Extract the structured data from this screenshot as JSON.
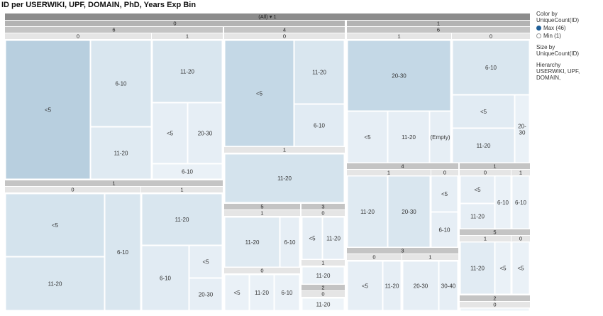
{
  "title": "ID per USERWIKI, UPF, DOMAIN, PhD, Years Exp Bin",
  "legend": {
    "color_by_label": "Color by",
    "color_by_value": "UniqueCount(ID)",
    "max_label": "Max (46)",
    "min_label": "Min (1)",
    "max_color": "#1f5f98",
    "min_color": "#ffffff",
    "size_by_label": "Size by",
    "size_by_value": "UniqueCount(ID)",
    "hierarchy_label": "Hierarchy",
    "hierarchy_value": "USERWIKI, UPF, DOMAIN,"
  },
  "chart_data": {
    "type": "treemap",
    "root_label": "(All)",
    "root_marker": "▾",
    "root_count": "1",
    "hierarchy": [
      "USERWIKI",
      "UPF",
      "DOMAIN",
      "PhD",
      "Years Exp Bin"
    ],
    "leaves": [
      {
        "path": [
          "0",
          "6",
          "0"
        ],
        "label": "<5"
      },
      {
        "path": [
          "0",
          "6",
          "0"
        ],
        "label": "6-10"
      },
      {
        "path": [
          "0",
          "6",
          "0"
        ],
        "label": "11-20"
      },
      {
        "path": [
          "0",
          "6",
          "1"
        ],
        "label": "11-20"
      },
      {
        "path": [
          "0",
          "6",
          "1"
        ],
        "label": "<5"
      },
      {
        "path": [
          "0",
          "6",
          "1"
        ],
        "label": "20-30"
      },
      {
        "path": [
          "0",
          "6",
          "1"
        ],
        "label": "6-10"
      },
      {
        "path": [
          "0",
          "1",
          "0"
        ],
        "label": "<5"
      },
      {
        "path": [
          "0",
          "1",
          "0"
        ],
        "label": "11-20"
      },
      {
        "path": [
          "0",
          "1",
          "0"
        ],
        "label": "6-10"
      },
      {
        "path": [
          "0",
          "1",
          "1"
        ],
        "label": "11-20"
      },
      {
        "path": [
          "0",
          "1",
          "1"
        ],
        "label": "6-10"
      },
      {
        "path": [
          "0",
          "1",
          "1"
        ],
        "label": "<5"
      },
      {
        "path": [
          "0",
          "1",
          "1"
        ],
        "label": "20-30"
      },
      {
        "path": [
          "0",
          "4",
          "0"
        ],
        "label": "<5"
      },
      {
        "path": [
          "0",
          "4",
          "0"
        ],
        "label": "11-20"
      },
      {
        "path": [
          "0",
          "4",
          "0"
        ],
        "label": "6-10"
      },
      {
        "path": [
          "0",
          "4",
          "1"
        ],
        "label": "11-20"
      },
      {
        "path": [
          "0",
          "5",
          "1"
        ],
        "label": "11-20"
      },
      {
        "path": [
          "0",
          "5",
          "1"
        ],
        "label": "6-10"
      },
      {
        "path": [
          "0",
          "5",
          "0"
        ],
        "label": "<5"
      },
      {
        "path": [
          "0",
          "5",
          "0"
        ],
        "label": "11-20"
      },
      {
        "path": [
          "0",
          "5",
          "0"
        ],
        "label": "6-10"
      },
      {
        "path": [
          "0",
          "3",
          "0"
        ],
        "label": "<5"
      },
      {
        "path": [
          "0",
          "3",
          "0"
        ],
        "label": "11-20"
      },
      {
        "path": [
          "0",
          "3",
          "1"
        ],
        "label": "11-20"
      },
      {
        "path": [
          "0",
          "2",
          "0"
        ],
        "label": "11-20"
      },
      {
        "path": [
          "1",
          "6",
          "1"
        ],
        "label": "20-30"
      },
      {
        "path": [
          "1",
          "6",
          "1"
        ],
        "label": "<5"
      },
      {
        "path": [
          "1",
          "6",
          "1"
        ],
        "label": "11-20"
      },
      {
        "path": [
          "1",
          "6",
          "1"
        ],
        "label": "(Empty)"
      },
      {
        "path": [
          "1",
          "6",
          "0"
        ],
        "label": "6-10"
      },
      {
        "path": [
          "1",
          "6",
          "0"
        ],
        "label": "<5"
      },
      {
        "path": [
          "1",
          "6",
          "0"
        ],
        "label": "11-20"
      },
      {
        "path": [
          "1",
          "6",
          "0"
        ],
        "label": "20-30"
      },
      {
        "path": [
          "1",
          "4",
          "1"
        ],
        "label": "11-20"
      },
      {
        "path": [
          "1",
          "4",
          "1"
        ],
        "label": "20-30"
      },
      {
        "path": [
          "1",
          "4",
          "0"
        ],
        "label": "<5"
      },
      {
        "path": [
          "1",
          "4",
          "0"
        ],
        "label": "6-10"
      },
      {
        "path": [
          "1",
          "3",
          "0"
        ],
        "label": "<5"
      },
      {
        "path": [
          "1",
          "3",
          "0"
        ],
        "label": "11-20"
      },
      {
        "path": [
          "1",
          "3",
          "1"
        ],
        "label": "20-30"
      },
      {
        "path": [
          "1",
          "3",
          "1"
        ],
        "label": "30-40"
      },
      {
        "path": [
          "1",
          "1",
          "0"
        ],
        "label": "<5"
      },
      {
        "path": [
          "1",
          "1",
          "0"
        ],
        "label": "11-20"
      },
      {
        "path": [
          "1",
          "1",
          "0"
        ],
        "label": "6-10"
      },
      {
        "path": [
          "1",
          "1",
          "1"
        ],
        "label": "6-10"
      },
      {
        "path": [
          "1",
          "5",
          "1"
        ],
        "label": "11-20"
      },
      {
        "path": [
          "1",
          "5",
          "1"
        ],
        "label": "<5"
      },
      {
        "path": [
          "1",
          "5",
          "0"
        ],
        "label": "<5"
      },
      {
        "path": [
          "1",
          "2",
          "0"
        ],
        "label": ""
      }
    ],
    "headers": [
      "0",
      "6",
      "0",
      "1",
      "1",
      "0",
      "1",
      "4",
      "0",
      "1",
      "5",
      "1",
      "0",
      "3",
      "0",
      "1",
      "2",
      "0",
      "1",
      "6",
      "1",
      "0",
      "4",
      "1",
      "0",
      "3",
      "0",
      "1",
      "1",
      "0",
      "1",
      "5",
      "1",
      "0",
      "2",
      "0"
    ]
  }
}
